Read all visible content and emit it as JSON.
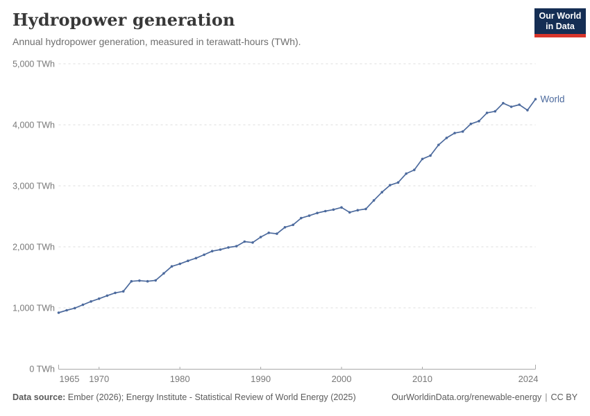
{
  "header": {
    "title": "Hydropower generation",
    "subtitle": "Annual hydropower generation, measured in terawatt-hours (TWh)."
  },
  "logo": {
    "line1": "Our World",
    "line2": "in Data",
    "bg_color": "#152e54",
    "accent_color": "#d8352b"
  },
  "footer": {
    "source_label": "Data source:",
    "source_text": " Ember (2026); Energy Institute - Statistical Review of World Energy (2025)",
    "url": "OurWorldinData.org/renewable-energy",
    "separator": "|",
    "license": "CC BY"
  },
  "chart_data": {
    "type": "line",
    "title": "Hydropower generation",
    "xlabel": "",
    "ylabel": "",
    "unit": "TWh",
    "xlim": [
      1965,
      2024
    ],
    "ylim": [
      0,
      5000
    ],
    "grid": "horizontal-dashed",
    "legend_position": "end-of-line-label",
    "grid_color": "#dcdcdc",
    "axis_color": "#a8a8a8",
    "tick_label_color": "#787878",
    "xticks": [
      1965,
      1970,
      1980,
      1990,
      2000,
      2010,
      2024
    ],
    "yticks": [
      {
        "value": 0,
        "label": "0 TWh"
      },
      {
        "value": 1000,
        "label": "1,000 TWh"
      },
      {
        "value": 2000,
        "label": "2,000 TWh"
      },
      {
        "value": 3000,
        "label": "3,000 TWh"
      },
      {
        "value": 4000,
        "label": "4,000 TWh"
      },
      {
        "value": 5000,
        "label": "5,000 TWh"
      }
    ],
    "x": [
      1965,
      1966,
      1967,
      1968,
      1969,
      1970,
      1971,
      1972,
      1973,
      1974,
      1975,
      1976,
      1977,
      1978,
      1979,
      1980,
      1981,
      1982,
      1983,
      1984,
      1985,
      1986,
      1987,
      1988,
      1989,
      1990,
      1991,
      1992,
      1993,
      1994,
      1995,
      1996,
      1997,
      1998,
      1999,
      2000,
      2001,
      2002,
      2003,
      2004,
      2005,
      2006,
      2007,
      2008,
      2009,
      2010,
      2011,
      2012,
      2013,
      2014,
      2015,
      2016,
      2017,
      2018,
      2019,
      2020,
      2021,
      2022,
      2023,
      2024
    ],
    "series": [
      {
        "name": "World",
        "color": "#4C6A9D",
        "values": [
          920,
          960,
          995,
          1050,
          1105,
          1150,
          1200,
          1245,
          1270,
          1435,
          1445,
          1435,
          1450,
          1565,
          1680,
          1720,
          1770,
          1815,
          1870,
          1930,
          1955,
          1990,
          2010,
          2085,
          2070,
          2160,
          2230,
          2215,
          2320,
          2360,
          2470,
          2510,
          2555,
          2585,
          2610,
          2645,
          2565,
          2600,
          2620,
          2760,
          2895,
          3010,
          3055,
          3200,
          3260,
          3440,
          3495,
          3670,
          3785,
          3865,
          3890,
          4015,
          4060,
          4195,
          4220,
          4355,
          4295,
          4330,
          4240,
          4420
        ]
      }
    ]
  }
}
